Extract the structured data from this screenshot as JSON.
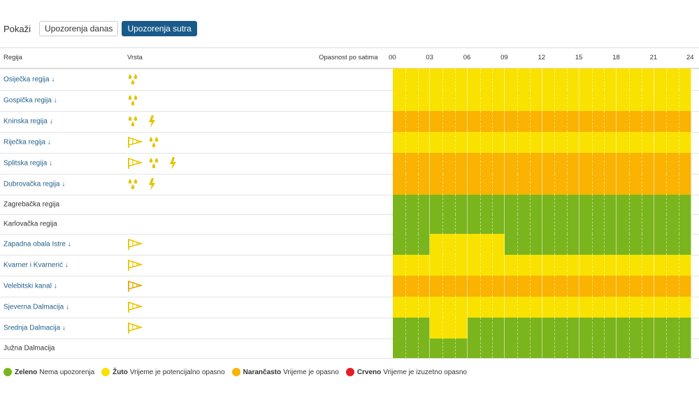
{
  "show": {
    "label": "Pokaži",
    "buttons": [
      {
        "label": "Upozorenja danas",
        "active": false
      },
      {
        "label": "Upozorenja sutra",
        "active": true
      }
    ]
  },
  "header": {
    "region": "Regija",
    "type": "Vrsta",
    "danger": "Opasnost po satima",
    "hours": [
      "00",
      "03",
      "06",
      "09",
      "12",
      "15",
      "18",
      "21",
      "24"
    ]
  },
  "colors": {
    "Y": "#f9e100",
    "O": "#f9b300",
    "G": "#7ab51d",
    "R": "#e31e24",
    "icon": "#e5c400"
  },
  "regions": [
    {
      "name": "Osiječka regija",
      "link": true,
      "icons": [
        "rain-icon"
      ],
      "levels": "YYYYYYYY"
    },
    {
      "name": "Gospička regija",
      "link": true,
      "icons": [
        "rain-icon"
      ],
      "levels": "YYYYYYYY"
    },
    {
      "name": "Kninska regija",
      "link": true,
      "icons": [
        "rain-icon",
        "thunderstorm-icon"
      ],
      "levels": "OOOOOOOO"
    },
    {
      "name": "Riječka regija",
      "link": true,
      "icons": [
        "wind-icon",
        "rain-icon"
      ],
      "levels": "YYYYYYYY"
    },
    {
      "name": "Splitska regija",
      "link": true,
      "icons": [
        "wind-icon",
        "rain-icon",
        "thunderstorm-icon"
      ],
      "levels": "OOOOOOOO"
    },
    {
      "name": "Dubrovačka regija",
      "link": true,
      "icons": [
        "rain-icon",
        "thunderstorm-icon"
      ],
      "levels": "OOOOOOOO"
    },
    {
      "name": "Zagrebačka regija",
      "link": false,
      "icons": [],
      "levels": "GGGGGGGG"
    },
    {
      "name": "Karlovačka regija",
      "link": false,
      "icons": [],
      "levels": "GGGGGGGG"
    },
    {
      "name": "Zapadna obala Istre",
      "link": true,
      "icons": [
        "wind-icon"
      ],
      "levels": "GYYGGGGG"
    },
    {
      "name": "Kvarner i Kvarnerić",
      "link": true,
      "icons": [
        "wind-icon"
      ],
      "levels": "YYYYYYYY"
    },
    {
      "name": "Velebitski kanal",
      "link": true,
      "icons": [
        "wind-orange-icon"
      ],
      "levels": "OOOOOOOO"
    },
    {
      "name": "Sjeverna Dalmacija",
      "link": true,
      "icons": [
        "wind-icon"
      ],
      "levels": "YYYYYYYY"
    },
    {
      "name": "Srednja Dalmacija",
      "link": true,
      "icons": [
        "wind-icon"
      ],
      "levels": "GYGGGGGG"
    },
    {
      "name": "Južna Dalmacija",
      "link": false,
      "icons": [],
      "levels": "GGGGGGGG"
    }
  ],
  "legend": [
    {
      "color": "#7ab51d",
      "bold": "Zeleno",
      "text": "Nema upozorenja"
    },
    {
      "color": "#f9e100",
      "bold": "Žuto",
      "text": "Vrijeme je potencijalno opasno"
    },
    {
      "color": "#f9b300",
      "bold": "Narančasto",
      "text": "Vrijeme je opasno"
    },
    {
      "color": "#e31e24",
      "bold": "Crveno",
      "text": "Vrijeme je izuzetno opasno"
    }
  ]
}
